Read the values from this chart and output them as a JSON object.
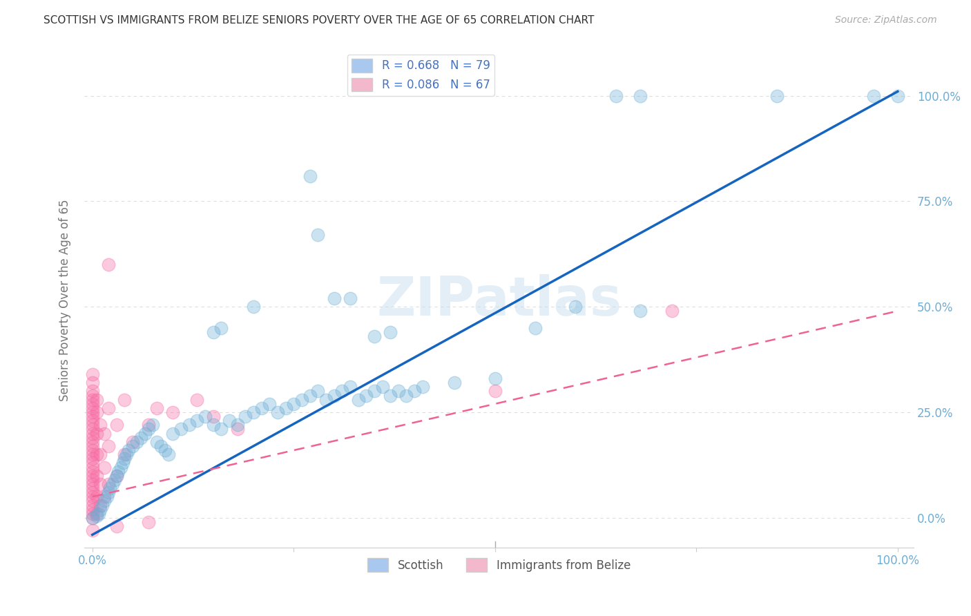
{
  "title": "SCOTTISH VS IMMIGRANTS FROM BELIZE SENIORS POVERTY OVER THE AGE OF 65 CORRELATION CHART",
  "source": "Source: ZipAtlas.com",
  "ylabel": "Seniors Poverty Over the Age of 65",
  "watermark": "ZIPatlas",
  "scottish_color": "#6baed6",
  "belize_color": "#f768a1",
  "scottish_line_color": "#1565c0",
  "belize_line_color": "#f06292",
  "legend_patch_scot": "#a8c8f0",
  "legend_patch_bel": "#f4b8cc",
  "legend_label_color": "#4472c4",
  "axis_tick_color": "#6baed6",
  "ylabel_color": "#777777",
  "background_color": "#ffffff",
  "grid_color": "#dddddd",
  "source_color": "#aaaaaa",
  "title_color": "#333333",
  "scottish_regression": [
    0.0,
    -0.04,
    1.0,
    1.01
  ],
  "belize_regression": [
    0.0,
    0.05,
    1.0,
    0.49
  ],
  "scottish_points": [
    [
      0.0,
      0.0
    ],
    [
      0.005,
      0.005
    ],
    [
      0.008,
      0.01
    ],
    [
      0.01,
      0.02
    ],
    [
      0.012,
      0.03
    ],
    [
      0.015,
      0.04
    ],
    [
      0.018,
      0.05
    ],
    [
      0.02,
      0.06
    ],
    [
      0.022,
      0.07
    ],
    [
      0.025,
      0.08
    ],
    [
      0.028,
      0.09
    ],
    [
      0.03,
      0.1
    ],
    [
      0.032,
      0.11
    ],
    [
      0.035,
      0.12
    ],
    [
      0.038,
      0.13
    ],
    [
      0.04,
      0.14
    ],
    [
      0.042,
      0.15
    ],
    [
      0.045,
      0.16
    ],
    [
      0.05,
      0.17
    ],
    [
      0.055,
      0.18
    ],
    [
      0.06,
      0.19
    ],
    [
      0.065,
      0.2
    ],
    [
      0.07,
      0.21
    ],
    [
      0.075,
      0.22
    ],
    [
      0.08,
      0.18
    ],
    [
      0.085,
      0.17
    ],
    [
      0.09,
      0.16
    ],
    [
      0.095,
      0.15
    ],
    [
      0.1,
      0.2
    ],
    [
      0.11,
      0.21
    ],
    [
      0.12,
      0.22
    ],
    [
      0.13,
      0.23
    ],
    [
      0.14,
      0.24
    ],
    [
      0.15,
      0.22
    ],
    [
      0.16,
      0.21
    ],
    [
      0.17,
      0.23
    ],
    [
      0.18,
      0.22
    ],
    [
      0.19,
      0.24
    ],
    [
      0.2,
      0.25
    ],
    [
      0.21,
      0.26
    ],
    [
      0.22,
      0.27
    ],
    [
      0.23,
      0.25
    ],
    [
      0.24,
      0.26
    ],
    [
      0.25,
      0.27
    ],
    [
      0.26,
      0.28
    ],
    [
      0.27,
      0.29
    ],
    [
      0.28,
      0.3
    ],
    [
      0.29,
      0.28
    ],
    [
      0.3,
      0.29
    ],
    [
      0.31,
      0.3
    ],
    [
      0.32,
      0.31
    ],
    [
      0.33,
      0.28
    ],
    [
      0.34,
      0.29
    ],
    [
      0.35,
      0.3
    ],
    [
      0.36,
      0.31
    ],
    [
      0.37,
      0.29
    ],
    [
      0.38,
      0.3
    ],
    [
      0.39,
      0.29
    ],
    [
      0.4,
      0.3
    ],
    [
      0.41,
      0.31
    ],
    [
      0.45,
      0.32
    ],
    [
      0.5,
      0.33
    ],
    [
      0.55,
      0.45
    ],
    [
      0.15,
      0.44
    ],
    [
      0.16,
      0.45
    ],
    [
      0.2,
      0.5
    ],
    [
      0.3,
      0.52
    ],
    [
      0.32,
      0.52
    ],
    [
      0.35,
      0.43
    ],
    [
      0.37,
      0.44
    ],
    [
      0.27,
      0.81
    ],
    [
      0.28,
      0.67
    ],
    [
      0.6,
      0.5
    ],
    [
      0.68,
      0.49
    ],
    [
      0.65,
      1.0
    ],
    [
      0.68,
      1.0
    ],
    [
      0.85,
      1.0
    ],
    [
      0.97,
      1.0
    ],
    [
      1.0,
      1.0
    ]
  ],
  "belize_points": [
    [
      0.0,
      0.0
    ],
    [
      0.0,
      0.01
    ],
    [
      0.0,
      0.02
    ],
    [
      0.0,
      0.03
    ],
    [
      0.0,
      0.04
    ],
    [
      0.0,
      0.05
    ],
    [
      0.0,
      0.06
    ],
    [
      0.0,
      0.07
    ],
    [
      0.0,
      0.08
    ],
    [
      0.0,
      0.09
    ],
    [
      0.0,
      0.1
    ],
    [
      0.0,
      0.11
    ],
    [
      0.0,
      0.12
    ],
    [
      0.0,
      0.13
    ],
    [
      0.0,
      0.14
    ],
    [
      0.0,
      0.15
    ],
    [
      0.0,
      0.16
    ],
    [
      0.0,
      0.17
    ],
    [
      0.0,
      0.18
    ],
    [
      0.0,
      0.19
    ],
    [
      0.0,
      0.2
    ],
    [
      0.0,
      0.21
    ],
    [
      0.0,
      0.22
    ],
    [
      0.0,
      0.23
    ],
    [
      0.0,
      0.24
    ],
    [
      0.0,
      0.25
    ],
    [
      0.0,
      0.26
    ],
    [
      0.0,
      0.27
    ],
    [
      0.0,
      0.28
    ],
    [
      0.0,
      0.29
    ],
    [
      0.0,
      0.3
    ],
    [
      0.0,
      0.32
    ],
    [
      0.0,
      0.34
    ],
    [
      0.005,
      0.01
    ],
    [
      0.005,
      0.05
    ],
    [
      0.005,
      0.1
    ],
    [
      0.005,
      0.15
    ],
    [
      0.005,
      0.2
    ],
    [
      0.005,
      0.25
    ],
    [
      0.005,
      0.28
    ],
    [
      0.01,
      0.03
    ],
    [
      0.01,
      0.08
    ],
    [
      0.01,
      0.15
    ],
    [
      0.01,
      0.22
    ],
    [
      0.015,
      0.05
    ],
    [
      0.015,
      0.12
    ],
    [
      0.015,
      0.2
    ],
    [
      0.02,
      0.08
    ],
    [
      0.02,
      0.17
    ],
    [
      0.02,
      0.26
    ],
    [
      0.03,
      0.1
    ],
    [
      0.03,
      0.22
    ],
    [
      0.04,
      0.15
    ],
    [
      0.04,
      0.28
    ],
    [
      0.05,
      0.18
    ],
    [
      0.07,
      0.22
    ],
    [
      0.08,
      0.26
    ],
    [
      0.1,
      0.25
    ],
    [
      0.02,
      0.6
    ],
    [
      0.0,
      -0.03
    ],
    [
      0.03,
      -0.02
    ],
    [
      0.07,
      -0.01
    ],
    [
      0.72,
      0.49
    ],
    [
      0.5,
      0.3
    ],
    [
      0.13,
      0.28
    ],
    [
      0.15,
      0.24
    ],
    [
      0.18,
      0.21
    ]
  ]
}
